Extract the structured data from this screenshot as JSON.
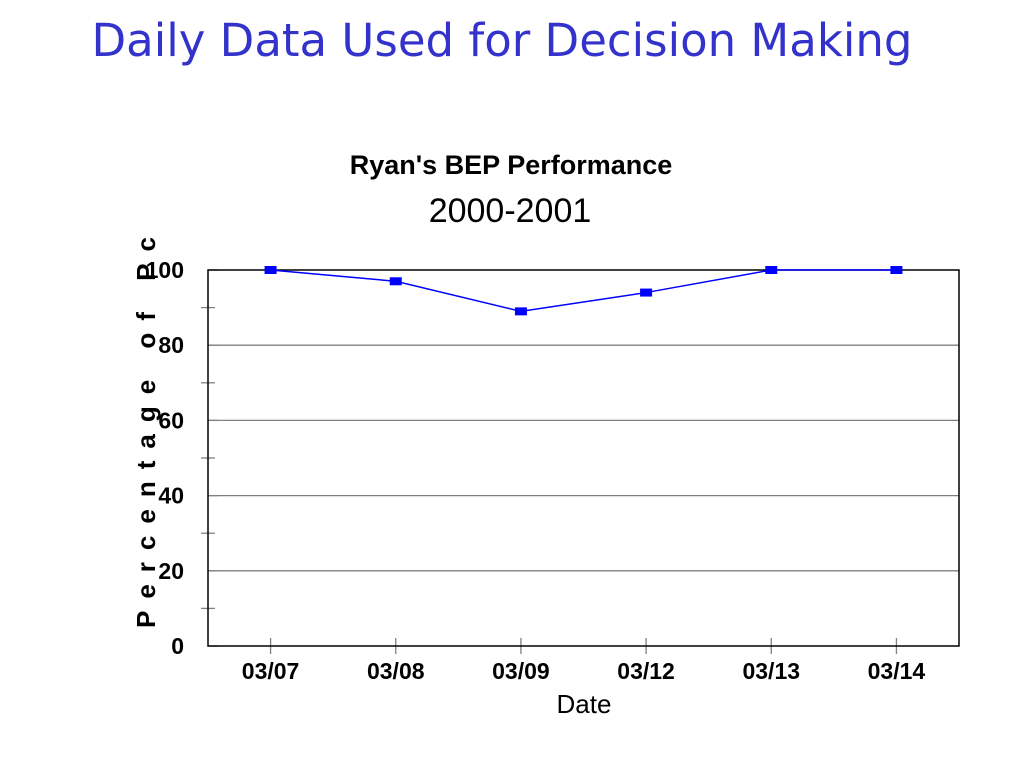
{
  "slide": {
    "title": "Daily Data Used for Decision Making"
  },
  "colors": {
    "title": "#3333cc",
    "series": "#0000ff",
    "grid": "#808080"
  },
  "chart_data": {
    "type": "line",
    "title": "Ryan's BEP Performance",
    "subtitle": "2000-2001",
    "xlabel": "Date",
    "ylabel": "Percentage of Pc",
    "categories": [
      "03/07",
      "03/08",
      "03/09",
      "03/12",
      "03/13",
      "03/14"
    ],
    "values": [
      100,
      97,
      89,
      94,
      100,
      100
    ],
    "ylim": [
      0,
      100
    ],
    "yticks": [
      0,
      20,
      40,
      60,
      80,
      100
    ],
    "grid": true,
    "marker": "square",
    "legend": "none"
  }
}
